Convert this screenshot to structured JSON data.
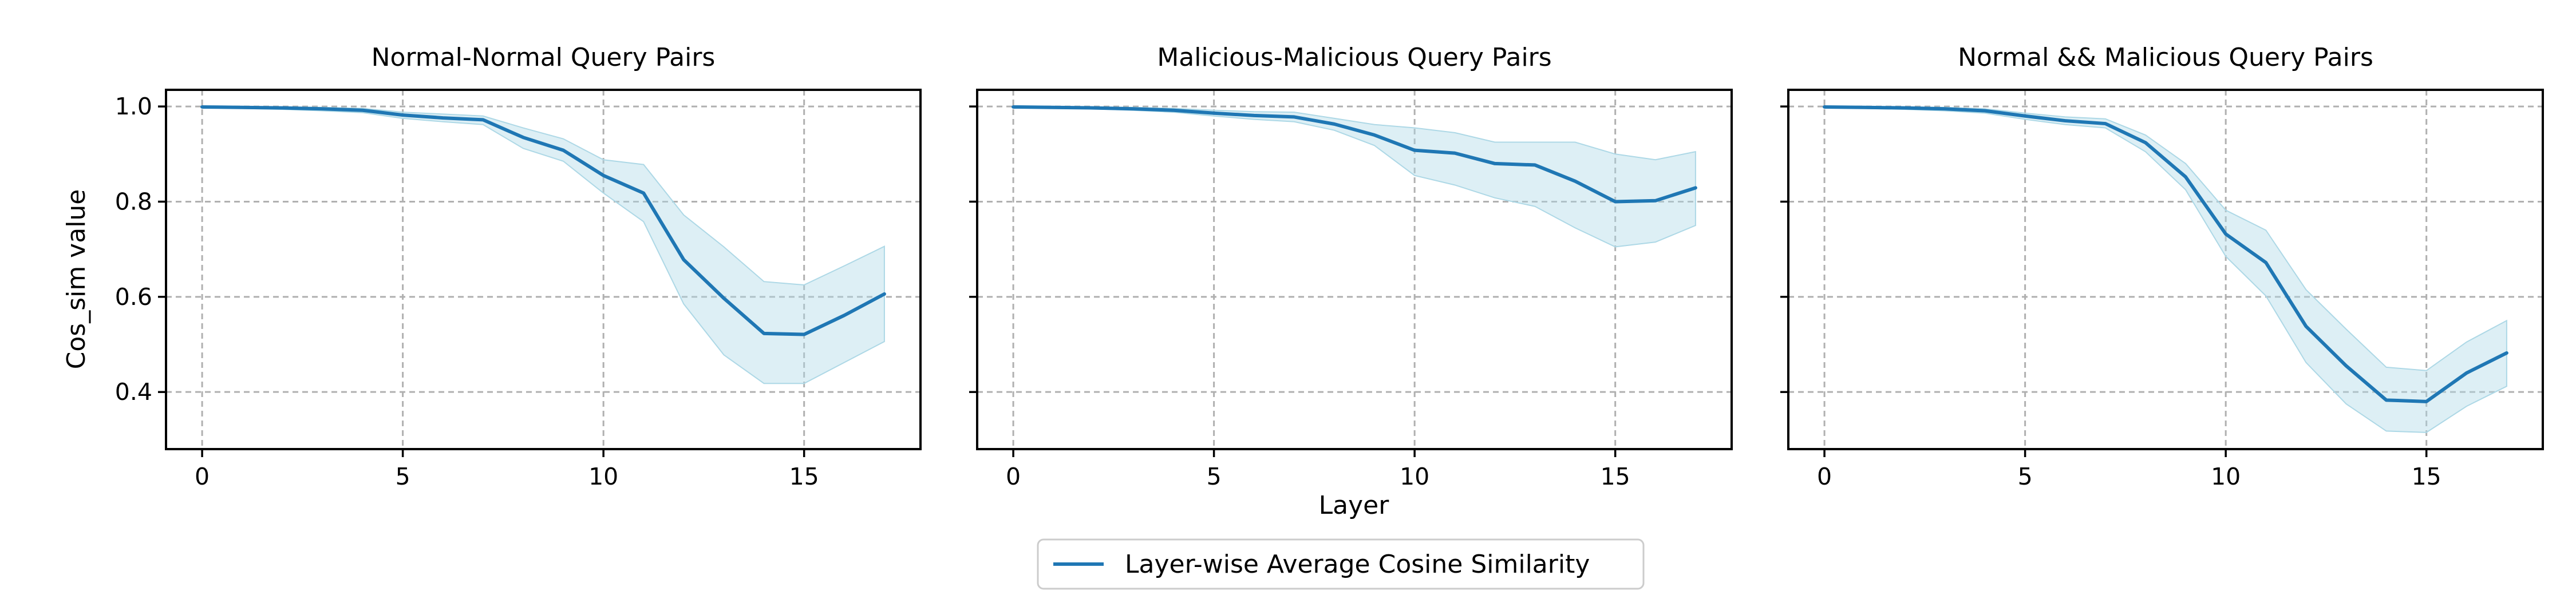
{
  "figure": {
    "xlabel": "Layer",
    "ylabel": "Cos_sim value",
    "legend_label": "Layer-wise Average Cosine Similarity",
    "line_color": "#1f77b4",
    "band_color": "#add8e6"
  },
  "chart_data": [
    {
      "type": "line",
      "title": "Normal-Normal Query Pairs",
      "xlabel": "",
      "ylabel": "Cos_sim value",
      "xlim": [
        -0.9,
        17.9
      ],
      "ylim": [
        0.28,
        1.035
      ],
      "xticks": [
        0,
        5,
        10,
        15
      ],
      "yticks": [
        0.4,
        0.6,
        0.8,
        1.0
      ],
      "grid": true,
      "series": [
        {
          "name": "Layer-wise Average Cosine Similarity",
          "x": [
            0,
            1,
            2,
            3,
            4,
            5,
            6,
            7,
            8,
            9,
            10,
            11,
            12,
            13,
            14,
            15,
            16,
            17
          ],
          "y": [
            0.999,
            0.998,
            0.997,
            0.995,
            0.992,
            0.982,
            0.976,
            0.972,
            0.935,
            0.908,
            0.855,
            0.818,
            0.678,
            0.597,
            0.523,
            0.521,
            0.561,
            0.606
          ],
          "lower": [
            0.997,
            0.996,
            0.994,
            0.991,
            0.987,
            0.975,
            0.968,
            0.962,
            0.912,
            0.885,
            0.818,
            0.758,
            0.585,
            0.478,
            0.418,
            0.418,
            0.462,
            0.506
          ],
          "upper": [
            1.0,
            1.0,
            0.999,
            0.998,
            0.996,
            0.988,
            0.984,
            0.98,
            0.955,
            0.932,
            0.888,
            0.878,
            0.772,
            0.705,
            0.632,
            0.625,
            0.665,
            0.706
          ]
        }
      ]
    },
    {
      "type": "line",
      "title": "Malicious-Malicious Query Pairs",
      "xlabel": "",
      "ylabel": "",
      "xlim": [
        -0.9,
        17.9
      ],
      "ylim": [
        0.28,
        1.035
      ],
      "xticks": [
        0,
        5,
        10,
        15
      ],
      "yticks": [
        0.4,
        0.6,
        0.8,
        1.0
      ],
      "grid": true,
      "series": [
        {
          "name": "Layer-wise Average Cosine Similarity",
          "x": [
            0,
            1,
            2,
            3,
            4,
            5,
            6,
            7,
            8,
            9,
            10,
            11,
            12,
            13,
            14,
            15,
            16,
            17
          ],
          "y": [
            0.999,
            0.998,
            0.997,
            0.995,
            0.992,
            0.986,
            0.981,
            0.978,
            0.963,
            0.94,
            0.908,
            0.902,
            0.88,
            0.877,
            0.843,
            0.8,
            0.802,
            0.829
          ],
          "lower": [
            0.998,
            0.997,
            0.995,
            0.992,
            0.988,
            0.98,
            0.973,
            0.968,
            0.95,
            0.918,
            0.855,
            0.835,
            0.808,
            0.79,
            0.745,
            0.705,
            0.715,
            0.75
          ],
          "upper": [
            1.0,
            1.0,
            0.999,
            0.998,
            0.996,
            0.992,
            0.989,
            0.988,
            0.975,
            0.962,
            0.955,
            0.945,
            0.925,
            0.925,
            0.925,
            0.9,
            0.888,
            0.905
          ]
        }
      ]
    },
    {
      "type": "line",
      "title": "Normal && Malicious Query Pairs",
      "xlabel": "",
      "ylabel": "",
      "xlim": [
        -0.9,
        17.9
      ],
      "ylim": [
        0.28,
        1.035
      ],
      "xticks": [
        0,
        5,
        10,
        15
      ],
      "yticks": [
        0.4,
        0.6,
        0.8,
        1.0
      ],
      "grid": true,
      "series": [
        {
          "name": "Layer-wise Average Cosine Similarity",
          "x": [
            0,
            1,
            2,
            3,
            4,
            5,
            6,
            7,
            8,
            9,
            10,
            11,
            12,
            13,
            14,
            15,
            16,
            17
          ],
          "y": [
            0.999,
            0.998,
            0.997,
            0.995,
            0.991,
            0.98,
            0.97,
            0.964,
            0.924,
            0.852,
            0.732,
            0.672,
            0.538,
            0.455,
            0.383,
            0.38,
            0.44,
            0.482
          ],
          "lower": [
            0.997,
            0.996,
            0.994,
            0.991,
            0.986,
            0.973,
            0.962,
            0.955,
            0.905,
            0.825,
            0.685,
            0.602,
            0.462,
            0.375,
            0.318,
            0.315,
            0.37,
            0.412
          ],
          "upper": [
            1.0,
            1.0,
            0.999,
            0.998,
            0.995,
            0.986,
            0.978,
            0.974,
            0.94,
            0.88,
            0.782,
            0.74,
            0.615,
            0.532,
            0.452,
            0.445,
            0.505,
            0.55
          ]
        }
      ]
    }
  ]
}
